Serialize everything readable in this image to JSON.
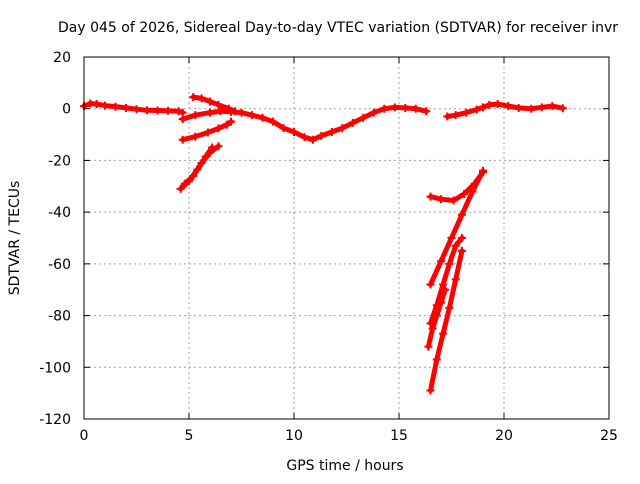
{
  "chart_data": {
    "type": "scatter",
    "title": "Day 045 of 2026, Sidereal Day-to-day VTEC variation (SDTVAR) for receiver invr",
    "xlabel": "GPS time / hours",
    "ylabel": "SDTVAR / TECUs",
    "xlim": [
      0,
      25
    ],
    "ylim": [
      -120,
      20
    ],
    "xticks": [
      0,
      5,
      10,
      15,
      20,
      25
    ],
    "yticks": [
      20,
      0,
      -20,
      -40,
      -60,
      -80,
      -100,
      -120
    ],
    "grid": true,
    "marker_color": "#ff0000",
    "series": [
      {
        "x": [
          0.0,
          0.3,
          0.6,
          1.0,
          1.5,
          2.0,
          2.5,
          3.0,
          3.5,
          4.0,
          4.5,
          4.7
        ],
        "y": [
          1.0,
          2.0,
          1.8,
          1.2,
          0.8,
          0.3,
          -0.2,
          -0.6,
          -0.7,
          -0.8,
          -1.0,
          -1.5
        ]
      },
      {
        "x": [
          4.7,
          5.3,
          6.0,
          6.5,
          7.0,
          7.5,
          8.0,
          8.5,
          9.0,
          9.5,
          10.0,
          10.5,
          10.9,
          11.3,
          11.8,
          12.3,
          12.8,
          13.3,
          13.8,
          14.3,
          14.8,
          15.3,
          15.8,
          16.3
        ],
        "y": [
          -4.0,
          -2.5,
          -1.5,
          -1.0,
          -1.2,
          -1.5,
          -2.5,
          -3.5,
          -5.0,
          -7.5,
          -9.0,
          -11.0,
          -12.0,
          -10.5,
          -9.0,
          -7.5,
          -5.5,
          -3.5,
          -1.5,
          0.0,
          0.5,
          0.3,
          0.0,
          -1.0
        ]
      },
      {
        "x": [
          5.2,
          5.6,
          6.0,
          6.4,
          6.9,
          7.2
        ],
        "y": [
          4.5,
          4.0,
          2.8,
          1.5,
          0.0,
          -1.0
        ]
      },
      {
        "x": [
          4.7,
          5.3,
          5.9,
          6.4,
          6.8,
          7.0
        ],
        "y": [
          -12.0,
          -10.8,
          -9.2,
          -7.6,
          -6.2,
          -5.0
        ]
      },
      {
        "x": [
          4.6,
          5.0,
          5.4,
          5.8,
          6.1
        ],
        "y": [
          -31.0,
          -28.0,
          -23.5,
          -18.5,
          -15.0
        ]
      },
      {
        "x": [
          4.8,
          5.2,
          5.6,
          6.0,
          6.4
        ],
        "y": [
          -29.0,
          -26.0,
          -21.0,
          -17.0,
          -14.5
        ]
      },
      {
        "x": [
          17.3,
          17.7,
          18.2,
          18.7,
          19.0,
          19.3,
          19.7,
          20.2,
          20.7,
          21.3,
          21.8,
          22.3,
          22.8
        ],
        "y": [
          -3.0,
          -2.5,
          -1.5,
          -0.3,
          0.5,
          1.5,
          1.8,
          1.0,
          0.3,
          0.0,
          0.5,
          1.0,
          0.2
        ]
      },
      {
        "x": [
          16.5,
          17.0,
          17.6,
          18.1,
          18.6,
          19.0
        ],
        "y": [
          -34.0,
          -35.0,
          -35.5,
          -33.0,
          -29.0,
          -24.5
        ]
      },
      {
        "x": [
          16.5,
          17.0,
          17.5,
          18.0,
          18.5,
          19.0
        ],
        "y": [
          -68.0,
          -59.0,
          -50.0,
          -41.0,
          -32.0,
          -24.0
        ]
      },
      {
        "x": [
          16.5,
          16.8,
          17.1,
          17.4,
          17.7,
          18.0
        ],
        "y": [
          -83.0,
          -76.0,
          -68.0,
          -60.0,
          -53.0,
          -50.0
        ]
      },
      {
        "x": [
          16.4,
          16.6,
          16.8,
          17.0,
          17.2
        ],
        "y": [
          -92.0,
          -85.0,
          -80.0,
          -75.0,
          -70.0
        ]
      },
      {
        "x": [
          16.5,
          16.8,
          17.1,
          17.4,
          17.7,
          18.0
        ],
        "y": [
          -109.0,
          -97.0,
          -87.0,
          -77.0,
          -66.0,
          -55.0
        ]
      }
    ]
  }
}
